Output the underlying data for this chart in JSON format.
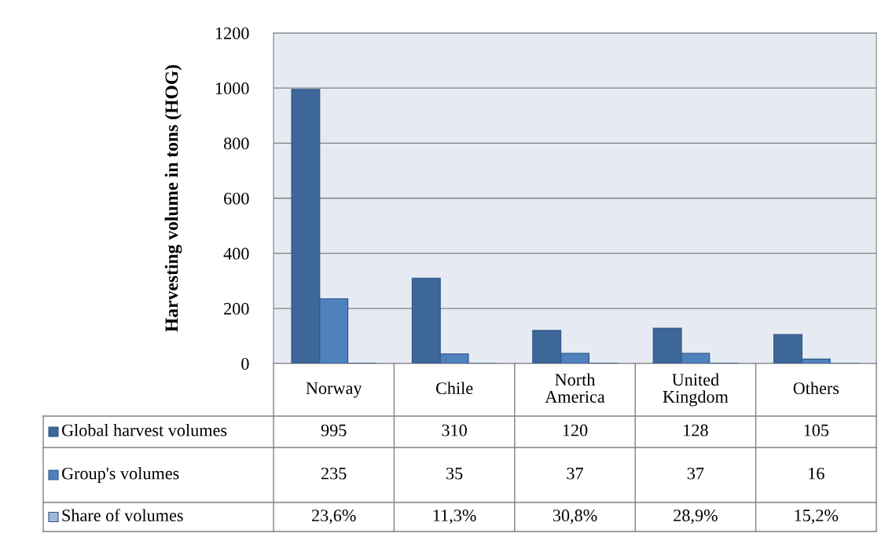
{
  "chart_data": {
    "type": "bar",
    "ylabel": "Harvesting volume in tons (HOG)",
    "categories": [
      "Norway",
      "Chile",
      "North America",
      "United Kingdom",
      "Others"
    ],
    "series": [
      {
        "name": "Global harvest volumes",
        "color": "#3d6699",
        "values": [
          995,
          310,
          120,
          128,
          105
        ],
        "value_labels": [
          "995",
          "310",
          "120",
          "128",
          "105"
        ]
      },
      {
        "name": "Group's volumes",
        "color": "#4f81bd",
        "values": [
          235,
          35,
          37,
          37,
          16
        ],
        "value_labels": [
          "235",
          "35",
          "37",
          "37",
          "16"
        ]
      },
      {
        "name": "Share of volumes",
        "color": "#a5b8d9",
        "values": [
          0.236,
          0.113,
          0.308,
          0.289,
          0.152
        ],
        "value_labels": [
          "23,6%",
          "11,3%",
          "30,8%",
          "28,9%",
          "15,2%"
        ]
      }
    ],
    "ylim": [
      0,
      1200
    ],
    "yticks": [
      0,
      200,
      400,
      600,
      800,
      1000,
      1200
    ],
    "grid": "y",
    "legend": "bottom left"
  }
}
